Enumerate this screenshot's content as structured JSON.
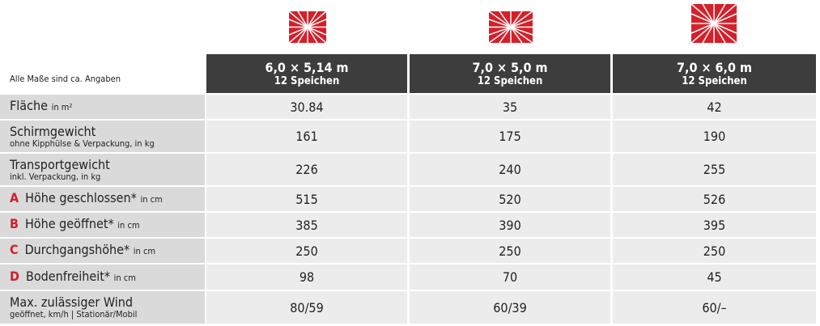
{
  "note": "Alle Maße sind ca. Angaben",
  "columns": [
    {
      "size": "6,0 × 5,14 m",
      "spokes": "12 Speichen"
    },
    {
      "size": "7,0 × 5,0 m",
      "spokes": "12 Speichen"
    },
    {
      "size": "7,0 × 6,0 m",
      "spokes": "12 Speichen"
    }
  ],
  "rows": [
    {
      "label": "Fläche",
      "unit": "in m²",
      "values": [
        "30.84",
        "35",
        "42"
      ]
    },
    {
      "label": "Schirmgewicht",
      "unit": "ohne Kipphülse & Verpackung, in kg",
      "values": [
        "161",
        "175",
        "190"
      ]
    },
    {
      "label": "Transportgewicht",
      "unit": "inkl. Verpackung, in kg",
      "values": [
        "226",
        "240",
        "255"
      ]
    },
    {
      "letter": "A",
      "label": "Höhe geschlossen*",
      "unit": "in cm",
      "values": [
        "515",
        "520",
        "526"
      ]
    },
    {
      "letter": "B",
      "label": "Höhe geöffnet*",
      "unit": "in cm",
      "values": [
        "385",
        "390",
        "395"
      ]
    },
    {
      "letter": "C",
      "label": "Durchgangshöhe*",
      "unit": "in cm",
      "values": [
        "250",
        "250",
        "250"
      ]
    },
    {
      "letter": "D",
      "label": "Bodenfreiheit*",
      "unit": "in cm",
      "values": [
        "98",
        "70",
        "45"
      ]
    },
    {
      "label": "Max. zulässiger Wind",
      "unit": "geöffnet, km/h | Stationär/Mobil",
      "values": [
        "80/59",
        "60/39",
        "60/–"
      ]
    }
  ]
}
